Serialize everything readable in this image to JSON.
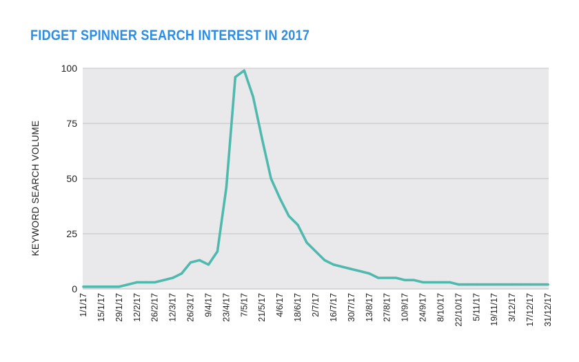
{
  "chart_data": {
    "type": "line",
    "title": "FIDGET SPINNER SEARCH INTEREST IN 2017",
    "xlabel": "",
    "ylabel": "KEYWORD SEARCH VOLUME",
    "ylim": [
      0,
      100
    ],
    "yticks": [
      0,
      25,
      50,
      75,
      100
    ],
    "grid": true,
    "legend": "none",
    "colors": {
      "line": "#4fb9ae",
      "plot_bg": "#e9e9ec",
      "grid": "#c4c4c8",
      "title": "#2a8ee8"
    },
    "x": [
      "1/1/17",
      "8/1/17",
      "15/1/17",
      "22/1/17",
      "29/1/17",
      "5/2/17",
      "12/2/17",
      "19/2/17",
      "26/2/17",
      "5/3/17",
      "12/3/17",
      "19/3/17",
      "26/3/17",
      "2/4/17",
      "9/4/17",
      "16/4/17",
      "23/4/17",
      "30/4/17",
      "7/5/17",
      "14/5/17",
      "21/5/17",
      "28/5/17",
      "4/6/17",
      "11/6/17",
      "18/6/17",
      "25/6/17",
      "2/7/17",
      "9/7/17",
      "16/7/17",
      "23/7/17",
      "30/7/17",
      "6/8/17",
      "13/8/17",
      "20/8/17",
      "27/8/17",
      "3/9/17",
      "10/9/17",
      "17/9/17",
      "24/9/17",
      "1/10/17",
      "8/10/17",
      "15/10/17",
      "22/10/17",
      "29/10/17",
      "5/11/17",
      "12/11/17",
      "19/11/17",
      "26/11/17",
      "3/12/17",
      "10/12/17",
      "17/12/17",
      "24/12/17",
      "31/12/17"
    ],
    "xtick_labels": [
      "1/1/17",
      "15/1/17",
      "29/1/17",
      "12/2/17",
      "26/2/17",
      "12/3/17",
      "26/3/17",
      "9/4/17",
      "23/4/17",
      "7/5/17",
      "21/5/17",
      "4/6/17",
      "18/6/17",
      "2/7/17",
      "16/7/17",
      "30/7/17",
      "13/8/17",
      "27/8/17",
      "10/9/17",
      "24/9/17",
      "8/10/17",
      "22/10/17",
      "5/11/17",
      "19/11/17",
      "3/12/17",
      "17/12/17",
      "31/12/17"
    ],
    "series": [
      {
        "values": [
          1,
          1,
          1,
          1,
          1,
          2,
          3,
          3,
          3,
          4,
          5,
          7,
          12,
          13,
          11,
          17,
          46,
          96,
          99,
          87,
          68,
          50,
          41,
          33,
          29,
          21,
          17,
          13,
          11,
          10,
          9,
          8,
          7,
          5,
          5,
          5,
          4,
          4,
          3,
          3,
          3,
          3,
          2,
          2,
          2,
          2,
          2,
          2,
          2,
          2,
          2,
          2,
          2
        ]
      }
    ]
  }
}
